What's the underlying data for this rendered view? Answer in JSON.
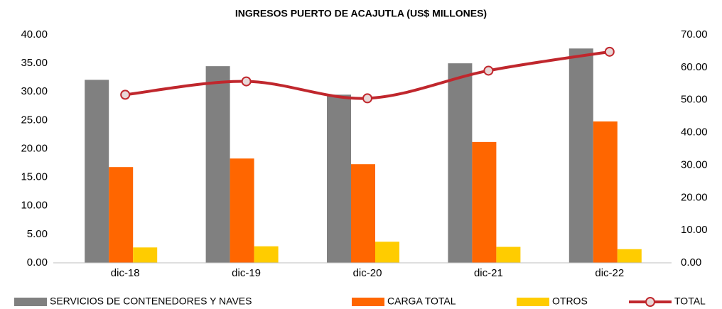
{
  "chart_data": {
    "type": "bar_line",
    "title": "INGRESOS PUERTO DE ACAJUTLA (US$ MILLONES)",
    "categories": [
      "dic-18",
      "dic-19",
      "dic-20",
      "dic-21",
      "dic-22"
    ],
    "series": [
      {
        "name": "SERVICIOS DE CONTENEDORES Y NAVES",
        "color": "#808080",
        "type": "bar",
        "values": [
          32.1,
          34.5,
          29.5,
          35.0,
          37.6
        ]
      },
      {
        "name": "CARGA TOTAL",
        "color": "#ff6600",
        "type": "bar",
        "values": [
          16.8,
          18.3,
          17.3,
          21.2,
          24.8
        ]
      },
      {
        "name": "OTROS",
        "color": "#ffcc00",
        "type": "bar",
        "values": [
          2.7,
          2.9,
          3.7,
          2.8,
          2.4
        ]
      },
      {
        "name": "TOTAL",
        "color": "#c0272d",
        "type": "line",
        "axis": "y2",
        "values": [
          51.6,
          55.7,
          50.5,
          59.0,
          64.8
        ]
      }
    ],
    "ylim": [
      0,
      40
    ],
    "yticks": [
      {
        "value": 0,
        "label": "0.00"
      },
      {
        "value": 5,
        "label": "5.00"
      },
      {
        "value": 10,
        "label": "10.00"
      },
      {
        "value": 15,
        "label": "15.00"
      },
      {
        "value": 20,
        "label": "20.00"
      },
      {
        "value": 25,
        "label": "25.00"
      },
      {
        "value": 30,
        "label": "30.00"
      },
      {
        "value": 35,
        "label": "35.00"
      },
      {
        "value": 40,
        "label": "40.00"
      }
    ],
    "y2lim": [
      0,
      70
    ],
    "y2ticks": [
      {
        "value": 0,
        "label": "0.00"
      },
      {
        "value": 10,
        "label": "10.00"
      },
      {
        "value": 20,
        "label": "20.00"
      },
      {
        "value": 30,
        "label": "30.00"
      },
      {
        "value": 40,
        "label": "40.00"
      },
      {
        "value": 50,
        "label": "50.00"
      },
      {
        "value": 60,
        "label": "60.00"
      },
      {
        "value": 70,
        "label": "70.00"
      }
    ],
    "grid": false,
    "legend": "bottom"
  }
}
